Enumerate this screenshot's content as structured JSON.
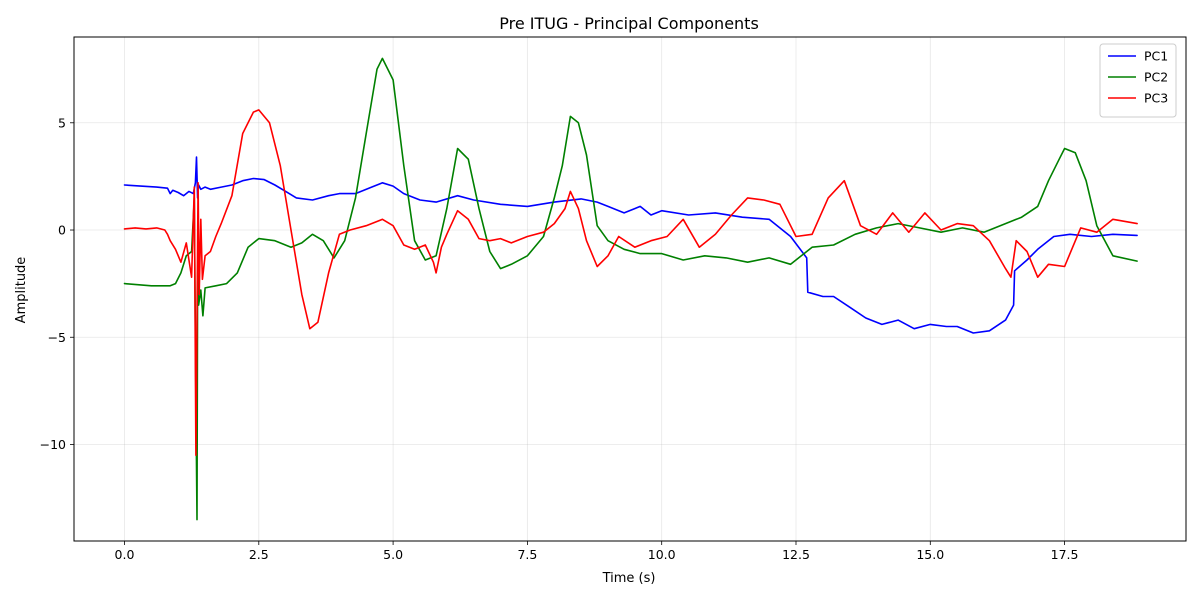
{
  "chart_data": {
    "type": "line",
    "title": "Pre ITUG - Principal Components",
    "xlabel": "Time (s)",
    "ylabel": "Amplitude",
    "xlim": [
      -0.94,
      19.76
    ],
    "ylim": [
      -14.5,
      9.0
    ],
    "xticks": [
      {
        "value": 0.0,
        "label": "0.0"
      },
      {
        "value": 2.5,
        "label": "2.5"
      },
      {
        "value": 5.0,
        "label": "5.0"
      },
      {
        "value": 7.5,
        "label": "7.5"
      },
      {
        "value": 10.0,
        "label": "10.0"
      },
      {
        "value": 12.5,
        "label": "12.5"
      },
      {
        "value": 15.0,
        "label": "15.0"
      },
      {
        "value": 17.5,
        "label": "17.5"
      }
    ],
    "yticks": [
      {
        "value": 5,
        "label": "5"
      },
      {
        "value": 0,
        "label": "0"
      },
      {
        "value": -5,
        "label": "−5"
      },
      {
        "value": -10,
        "label": "−10"
      }
    ],
    "grid": true,
    "legend_position": "top-right",
    "series": [
      {
        "name": "PC1",
        "color": "#0000ff",
        "x": [
          0.0,
          0.3,
          0.6,
          0.8,
          0.85,
          0.9,
          1.0,
          1.1,
          1.2,
          1.28,
          1.32,
          1.34,
          1.36,
          1.38,
          1.42,
          1.5,
          1.6,
          1.8,
          2.0,
          2.2,
          2.4,
          2.6,
          2.8,
          3.0,
          3.2,
          3.5,
          3.8,
          4.0,
          4.3,
          4.6,
          4.8,
          5.0,
          5.2,
          5.5,
          5.8,
          6.2,
          6.5,
          7.0,
          7.5,
          8.0,
          8.5,
          8.8,
          9.0,
          9.3,
          9.6,
          9.8,
          10.0,
          10.5,
          11.0,
          11.5,
          12.0,
          12.4,
          12.7,
          12.72,
          13.0,
          13.2,
          13.5,
          13.8,
          14.1,
          14.4,
          14.7,
          15.0,
          15.3,
          15.5,
          15.8,
          16.1,
          16.4,
          16.55,
          16.57,
          16.8,
          17.0,
          17.3,
          17.6,
          18.0,
          18.4,
          18.85
        ],
        "y": [
          2.1,
          2.05,
          2.0,
          1.95,
          1.7,
          1.85,
          1.75,
          1.6,
          1.8,
          1.7,
          2.2,
          3.4,
          1.5,
          2.1,
          1.9,
          2.0,
          1.9,
          2.0,
          2.1,
          2.3,
          2.4,
          2.35,
          2.1,
          1.8,
          1.5,
          1.4,
          1.6,
          1.7,
          1.7,
          2.0,
          2.2,
          2.05,
          1.7,
          1.4,
          1.3,
          1.6,
          1.4,
          1.2,
          1.1,
          1.3,
          1.45,
          1.3,
          1.1,
          0.8,
          1.1,
          0.7,
          0.9,
          0.7,
          0.8,
          0.6,
          0.5,
          -0.3,
          -1.3,
          -2.9,
          -3.1,
          -3.1,
          -3.6,
          -4.1,
          -4.4,
          -4.2,
          -4.6,
          -4.4,
          -4.5,
          -4.5,
          -4.8,
          -4.7,
          -4.2,
          -3.5,
          -1.9,
          -1.4,
          -0.9,
          -0.3,
          -0.2,
          -0.3,
          -0.2,
          -0.25
        ]
      },
      {
        "name": "PC2",
        "color": "#008000",
        "x": [
          0.0,
          0.5,
          0.85,
          0.95,
          1.05,
          1.15,
          1.25,
          1.3,
          1.33,
          1.35,
          1.36,
          1.38,
          1.42,
          1.46,
          1.5,
          1.7,
          1.9,
          2.1,
          2.3,
          2.5,
          2.8,
          3.1,
          3.3,
          3.5,
          3.7,
          3.9,
          4.1,
          4.3,
          4.5,
          4.7,
          4.8,
          5.0,
          5.2,
          5.4,
          5.6,
          5.8,
          6.0,
          6.2,
          6.4,
          6.6,
          6.8,
          7.0,
          7.2,
          7.5,
          7.8,
          8.0,
          8.15,
          8.3,
          8.45,
          8.6,
          8.8,
          9.0,
          9.3,
          9.6,
          10.0,
          10.4,
          10.8,
          11.2,
          11.6,
          12.0,
          12.4,
          12.8,
          13.2,
          13.6,
          14.0,
          14.4,
          14.8,
          15.2,
          15.6,
          16.0,
          16.4,
          16.7,
          17.0,
          17.2,
          17.4,
          17.5,
          17.7,
          17.9,
          18.1,
          18.4,
          18.85
        ],
        "y": [
          -2.5,
          -2.6,
          -2.6,
          -2.5,
          -2.0,
          -1.2,
          -1.0,
          1.5,
          -8.0,
          -13.5,
          -2.0,
          -3.5,
          -2.8,
          -4.0,
          -2.7,
          -2.6,
          -2.5,
          -2.0,
          -0.8,
          -0.4,
          -0.5,
          -0.8,
          -0.6,
          -0.2,
          -0.5,
          -1.3,
          -0.5,
          1.5,
          4.5,
          7.5,
          8.0,
          7.0,
          3.0,
          -0.5,
          -1.4,
          -1.2,
          1.0,
          3.8,
          3.3,
          1.0,
          -1.0,
          -1.8,
          -1.6,
          -1.2,
          -0.3,
          1.5,
          3.0,
          5.3,
          5.0,
          3.5,
          0.2,
          -0.5,
          -0.9,
          -1.1,
          -1.1,
          -1.4,
          -1.2,
          -1.3,
          -1.5,
          -1.3,
          -1.6,
          -0.8,
          -0.7,
          -0.2,
          0.1,
          0.3,
          0.1,
          -0.1,
          0.1,
          -0.1,
          0.3,
          0.6,
          1.1,
          2.3,
          3.3,
          3.8,
          3.6,
          2.3,
          0.2,
          -1.2,
          -1.45
        ]
      },
      {
        "name": "PC3",
        "color": "#ff0000",
        "x": [
          0.0,
          0.2,
          0.4,
          0.6,
          0.75,
          0.8,
          0.85,
          0.95,
          1.05,
          1.15,
          1.25,
          1.3,
          1.33,
          1.35,
          1.37,
          1.39,
          1.42,
          1.45,
          1.5,
          1.6,
          1.7,
          1.8,
          2.0,
          2.2,
          2.4,
          2.5,
          2.7,
          2.9,
          3.1,
          3.3,
          3.45,
          3.6,
          3.8,
          4.0,
          4.2,
          4.5,
          4.8,
          5.0,
          5.2,
          5.4,
          5.6,
          5.75,
          5.8,
          5.9,
          6.0,
          6.2,
          6.4,
          6.6,
          6.8,
          7.0,
          7.2,
          7.5,
          7.8,
          8.0,
          8.2,
          8.3,
          8.45,
          8.6,
          8.8,
          9.0,
          9.2,
          9.5,
          9.8,
          10.1,
          10.4,
          10.7,
          11.0,
          11.3,
          11.6,
          11.9,
          12.2,
          12.5,
          12.8,
          13.1,
          13.4,
          13.7,
          14.0,
          14.3,
          14.6,
          14.9,
          15.2,
          15.5,
          15.8,
          16.1,
          16.4,
          16.5,
          16.6,
          16.8,
          17.0,
          17.2,
          17.5,
          17.8,
          18.1,
          18.4,
          18.85
        ],
        "y": [
          0.05,
          0.1,
          0.05,
          0.1,
          0.0,
          -0.2,
          -0.5,
          -0.9,
          -1.5,
          -0.6,
          -2.2,
          2.0,
          -10.5,
          -4.0,
          2.2,
          -3.0,
          0.5,
          -2.3,
          -1.2,
          -1.0,
          -0.3,
          0.3,
          1.6,
          4.5,
          5.5,
          5.6,
          5.0,
          3.0,
          0.0,
          -3.0,
          -4.6,
          -4.3,
          -2.0,
          -0.2,
          0.0,
          0.2,
          0.5,
          0.2,
          -0.7,
          -0.9,
          -0.7,
          -1.5,
          -2.0,
          -0.8,
          -0.2,
          0.9,
          0.5,
          -0.4,
          -0.5,
          -0.4,
          -0.6,
          -0.3,
          -0.1,
          0.3,
          1.0,
          1.8,
          1.0,
          -0.5,
          -1.7,
          -1.2,
          -0.3,
          -0.8,
          -0.5,
          -0.3,
          0.5,
          -0.8,
          -0.2,
          0.7,
          1.5,
          1.4,
          1.2,
          -0.3,
          -0.2,
          1.5,
          2.3,
          0.2,
          -0.2,
          0.8,
          -0.1,
          0.8,
          0.0,
          0.3,
          0.2,
          -0.5,
          -1.8,
          -2.2,
          -0.5,
          -1.0,
          -2.2,
          -1.6,
          -1.7,
          0.1,
          -0.1,
          0.5,
          0.3
        ]
      }
    ]
  }
}
